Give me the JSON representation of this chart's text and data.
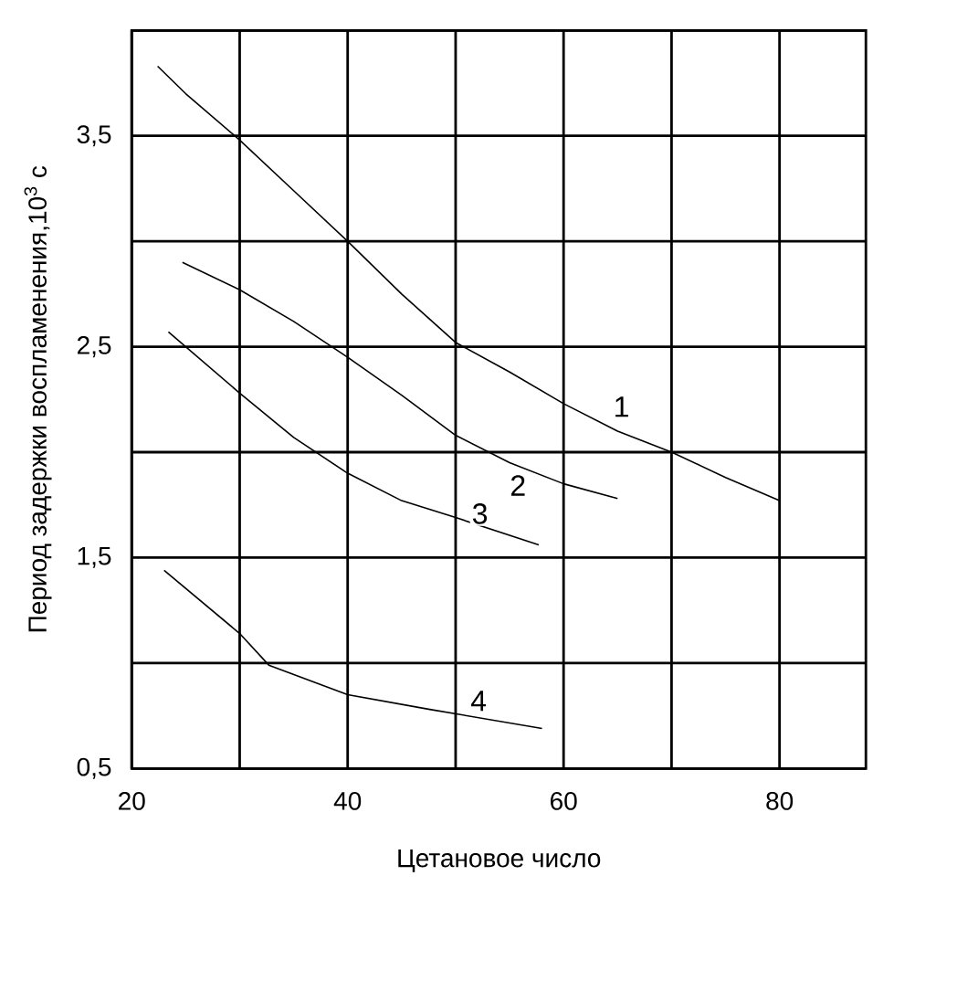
{
  "chart_data": {
    "type": "line",
    "xlabel": "Цетановое число",
    "ylabel": "Период задержки воспламенения,10$^{3}$ с",
    "xlim": [
      20,
      88
    ],
    "ylim": [
      0.5,
      4
    ],
    "xticks": [
      20,
      {
        "value": 30,
        "label": null
      },
      40,
      {
        "value": 50,
        "label": null
      },
      60,
      {
        "value": 70,
        "label": null
      },
      80
    ],
    "yticks": [
      {
        "value": 0.5,
        "label": "0,5"
      },
      {
        "value": 1,
        "label": null
      },
      {
        "value": 1.5,
        "label": "1,5"
      },
      {
        "value": 2,
        "label": null
      },
      {
        "value": 2.5,
        "label": "2,5"
      },
      {
        "value": 3,
        "label": null
      },
      {
        "value": 3.5,
        "label": "3,5"
      },
      {
        "value": 4,
        "label": null
      }
    ],
    "grid": true,
    "marker": "none",
    "line_style": "solid",
    "series": [
      {
        "name": "1",
        "color": "#000000",
        "x": [
          22.4,
          25,
          30,
          35,
          40,
          45,
          50,
          55,
          60,
          65,
          70,
          75,
          80
        ],
        "values": [
          3.83,
          3.7,
          3.48,
          3.24,
          3.0,
          2.75,
          2.52,
          2.38,
          2.23,
          2.1,
          2.0,
          1.88,
          1.77
        ]
      },
      {
        "name": "2",
        "color": "#000000",
        "x": [
          24.7,
          30,
          35,
          40,
          45,
          50,
          55,
          60,
          65
        ],
        "values": [
          2.9,
          2.77,
          2.62,
          2.45,
          2.27,
          2.08,
          1.95,
          1.85,
          1.78
        ]
      },
      {
        "name": "3",
        "color": "#000000",
        "x": [
          23.4,
          30,
          35,
          40,
          45,
          50,
          57.7
        ],
        "values": [
          2.57,
          2.28,
          2.07,
          1.9,
          1.77,
          1.69,
          1.56
        ]
      },
      {
        "name": "4",
        "color": "#000000",
        "x": [
          23,
          30,
          32.7,
          40,
          47.6,
          58
        ],
        "values": [
          1.44,
          1.14,
          0.99,
          0.85,
          0.78,
          0.69
        ]
      }
    ]
  }
}
